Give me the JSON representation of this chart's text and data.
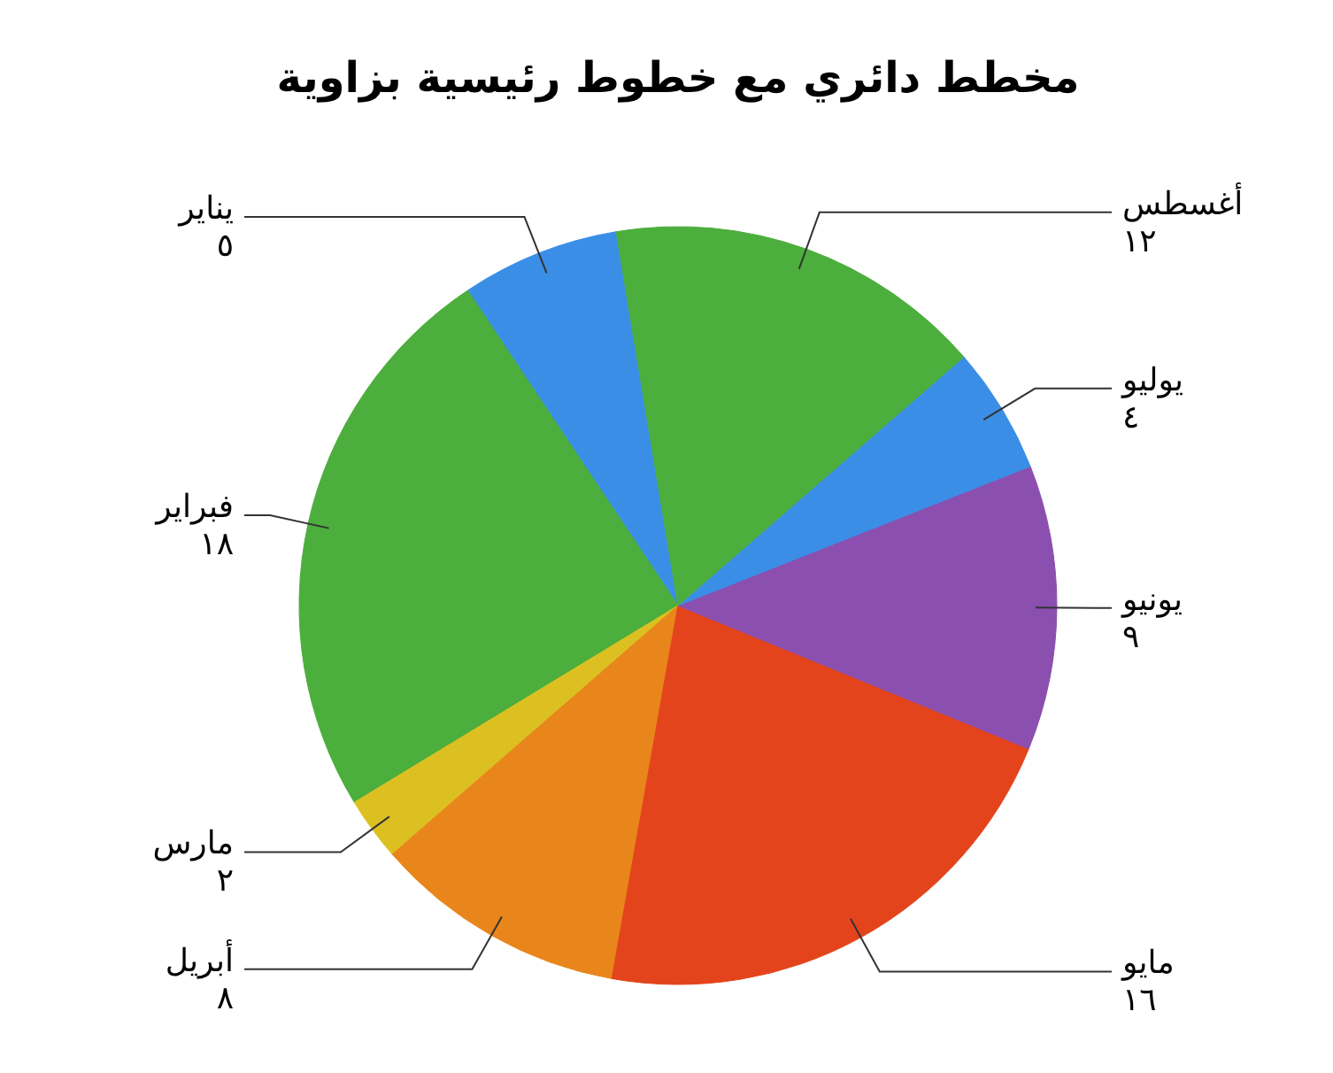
{
  "chart_data": {
    "type": "pie",
    "title": "مخطط دائري مع خطوط رئيسية بزاوية",
    "categories": [
      "يناير",
      "فبراير",
      "مارس",
      "أبريل",
      "مايو",
      "يونيو",
      "يوليو",
      "أغسطس"
    ],
    "values": [
      5,
      18,
      2,
      8,
      16,
      9,
      4,
      12
    ],
    "value_labels": [
      "٥",
      "١٨",
      "٢",
      "٨",
      "١٦",
      "٩",
      "٤",
      "١٢"
    ],
    "colors": [
      "#3b8ee6",
      "#4cae3c",
      "#dcc021",
      "#e8861c",
      "#e4441b",
      "#8a4faf",
      "#3b8ee6",
      "#4cae3c"
    ]
  }
}
